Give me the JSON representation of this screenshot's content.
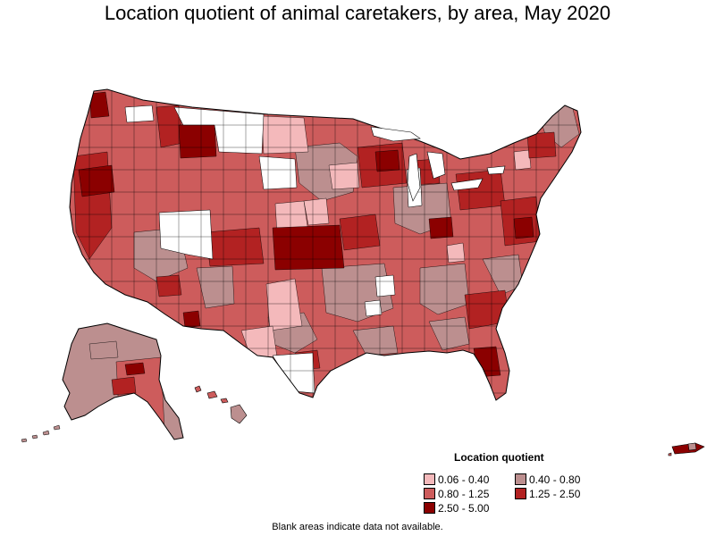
{
  "title": "Location quotient of animal caretakers, by area, May 2020",
  "legend": {
    "title": "Location quotient",
    "items": [
      {
        "label": "0.06 - 0.40",
        "color": "#f4b9bb"
      },
      {
        "label": "0.40 - 0.80",
        "color": "#bc8f8f"
      },
      {
        "label": "0.80 - 1.25",
        "color": "#cd5c5c"
      },
      {
        "label": "1.25 - 2.50",
        "color": "#b22222"
      },
      {
        "label": "2.50 - 5.00",
        "color": "#8b0000"
      }
    ]
  },
  "footnote": "Blank areas indicate data not available."
}
